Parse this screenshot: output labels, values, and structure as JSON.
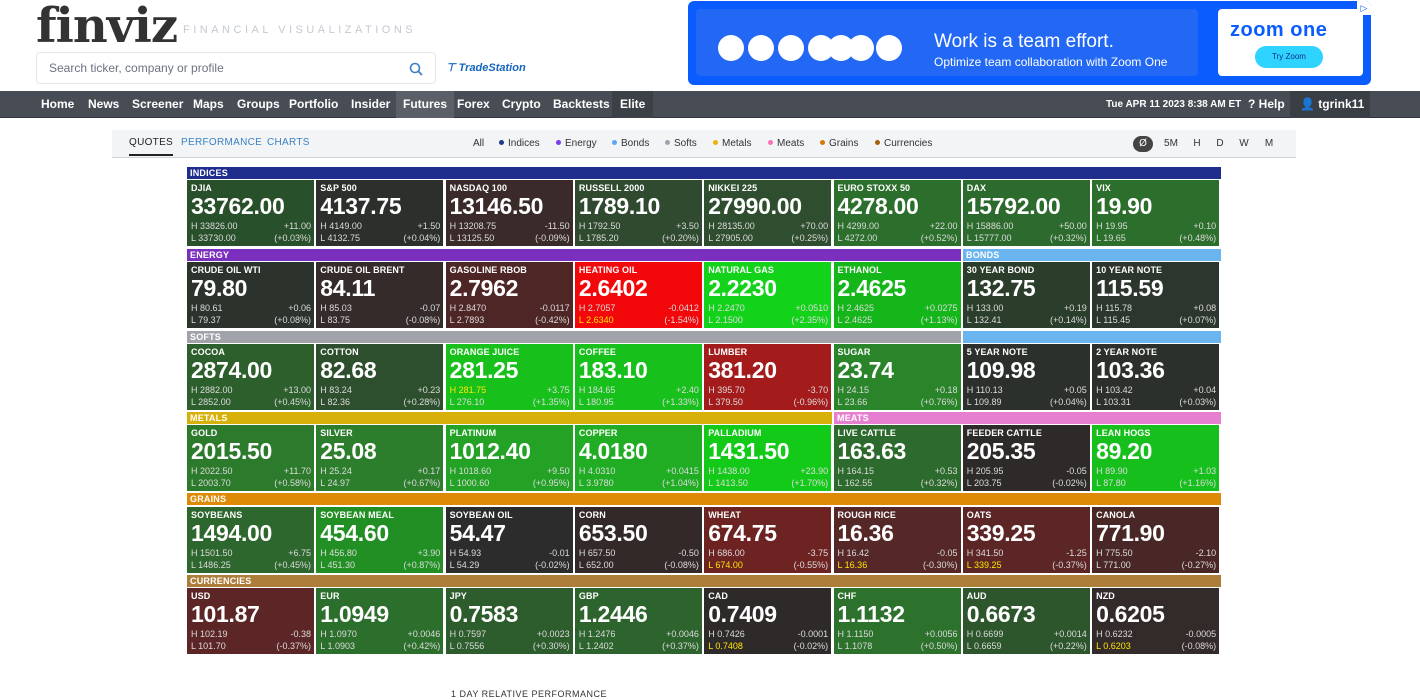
{
  "header": {
    "logo": "finviz",
    "tagline": "FINANCIAL VISUALIZATIONS",
    "search_placeholder": "Search ticker, company or profile",
    "tradestation": "TradeStation"
  },
  "ad": {
    "title": "Work is a team effort.",
    "subtitle": "Optimize team collaboration with Zoom One",
    "brand": "zoom one",
    "cta": "Try Zoom",
    "close": "▷"
  },
  "nav": {
    "items": [
      "Home",
      "News",
      "Screener",
      "Maps",
      "Groups",
      "Portfolio",
      "Insider",
      "Futures",
      "Forex",
      "Crypto",
      "Backtests",
      "Elite"
    ],
    "active": "Futures",
    "datetime": "Tue APR 11 2023 8:38 AM ET",
    "help": "Help",
    "user": "tgrink11"
  },
  "subnav": {
    "tabs": [
      "QUOTES",
      "PERFORMANCE",
      "CHARTS"
    ],
    "active_tab": "QUOTES",
    "filters": [
      {
        "label": "All",
        "color": ""
      },
      {
        "label": "Indices",
        "color": "#1e3a8a"
      },
      {
        "label": "Energy",
        "color": "#7c3aed"
      },
      {
        "label": "Bonds",
        "color": "#60a5fa"
      },
      {
        "label": "Softs",
        "color": "#9ca3af"
      },
      {
        "label": "Metals",
        "color": "#eab308"
      },
      {
        "label": "Meats",
        "color": "#f472b6"
      },
      {
        "label": "Grains",
        "color": "#d97706"
      },
      {
        "label": "Currencies",
        "color": "#a16207"
      }
    ],
    "timeframes": [
      "Ø",
      "5M",
      "H",
      "D",
      "W",
      "M"
    ],
    "active_timeframe": "Ø"
  },
  "categories": {
    "indices": {
      "label": "INDICES",
      "color": "#1f2d8c"
    },
    "energy": {
      "label": "ENERGY",
      "color": "#7b2fbe"
    },
    "bonds": {
      "label": "BONDS",
      "color": "#6ab5f0"
    },
    "softs": {
      "label": "SOFTS",
      "color": "#a0a4aa"
    },
    "metals": {
      "label": "METALS",
      "color": "#d7b10a"
    },
    "meats": {
      "label": "MEATS",
      "color": "#e77fd0"
    },
    "grains": {
      "label": "GRAINS",
      "color": "#dd8a07"
    },
    "currencies": {
      "label": "CURRENCIES",
      "color": "#ad7d3a"
    }
  },
  "tiles": [
    {
      "name": "DJIA",
      "price": "33762.00",
      "high": "H 33826.00",
      "low": "L 33730.00",
      "change": "+11.00",
      "pct": "(+0.03%)",
      "color": "#28502a"
    },
    {
      "name": "S&P 500",
      "price": "4137.75",
      "high": "H 4149.00",
      "low": "L 4132.75",
      "change": "+1.50",
      "pct": "(+0.04%)",
      "color": "#2c2f2c"
    },
    {
      "name": "NASDAQ 100",
      "price": "13146.50",
      "high": "H 13208.75",
      "low": "L 13125.50",
      "change": "-11.50",
      "pct": "(-0.09%)",
      "color": "#3a2a2a"
    },
    {
      "name": "RUSSELL 2000",
      "price": "1789.10",
      "high": "H 1792.50",
      "low": "L 1785.20",
      "change": "+3.50",
      "pct": "(+0.20%)",
      "color": "#2f4a2f"
    },
    {
      "name": "NIKKEI 225",
      "price": "27990.00",
      "high": "H 28135.00",
      "low": "L 27905.00",
      "change": "+70.00",
      "pct": "(+0.25%)",
      "color": "#2f4e2f"
    },
    {
      "name": "EURO STOXX 50",
      "price": "4278.00",
      "high": "H 4299.00",
      "low": "L 4272.00",
      "change": "+22.00",
      "pct": "(+0.52%)",
      "color": "#2c6f2c"
    },
    {
      "name": "DAX",
      "price": "15792.00",
      "high": "H 15886.00",
      "low": "L 15777.00",
      "change": "+50.00",
      "pct": "(+0.32%)",
      "color": "#2d6a2d"
    },
    {
      "name": "VIX",
      "price": "19.90",
      "high": "H 19.95",
      "low": "L 19.65",
      "change": "+0.10",
      "pct": "(+0.48%)",
      "color": "#2c6e2c"
    },
    {
      "name": "CRUDE OIL WTI",
      "price": "79.80",
      "high": "H 80.61",
      "low": "L 79.37",
      "change": "+0.06",
      "pct": "(+0.08%)",
      "color": "#2c322c"
    },
    {
      "name": "CRUDE OIL BRENT",
      "price": "84.11",
      "high": "H 85.03",
      "low": "L 83.75",
      "change": "-0.07",
      "pct": "(-0.08%)",
      "color": "#352b2b"
    },
    {
      "name": "GASOLINE RBOB",
      "price": "2.7962",
      "high": "H 2.8470",
      "low": "L 2.7893",
      "change": "-0.0117",
      "pct": "(-0.42%)",
      "color": "#4f2626"
    },
    {
      "name": "HEATING OIL",
      "price": "2.6402",
      "high": "H 2.7057",
      "low": "L 2.6340",
      "change": "-0.0412",
      "pct": "(-1.54%)",
      "color": "#f2070b",
      "lowHL": true
    },
    {
      "name": "NATURAL GAS",
      "price": "2.2230",
      "high": "H 2.2470",
      "low": "L 2.1500",
      "change": "+0.0510",
      "pct": "(+2.35%)",
      "color": "#13d21a"
    },
    {
      "name": "ETHANOL",
      "price": "2.4625",
      "high": "H 2.4625",
      "low": "L 2.4625",
      "change": "+0.0275",
      "pct": "(+1.13%)",
      "color": "#15b61a"
    },
    {
      "name": "30 YEAR BOND",
      "price": "132.75",
      "high": "H 133.00",
      "low": "L 132.41",
      "change": "+0.19",
      "pct": "(+0.14%)",
      "color": "#2b3d2b"
    },
    {
      "name": "10 YEAR NOTE",
      "price": "115.59",
      "high": "H 115.78",
      "low": "L 115.45",
      "change": "+0.08",
      "pct": "(+0.07%)",
      "color": "#2c362c"
    },
    {
      "name": "COCOA",
      "price": "2874.00",
      "high": "H 2882.00",
      "low": "L 2852.00",
      "change": "+13.00",
      "pct": "(+0.45%)",
      "color": "#2d5f2d"
    },
    {
      "name": "COTTON",
      "price": "82.68",
      "high": "H 83.24",
      "low": "L 82.36",
      "change": "+0.23",
      "pct": "(+0.28%)",
      "color": "#2d4f2d"
    },
    {
      "name": "ORANGE JUICE",
      "price": "281.25",
      "high": "H 281.75",
      "low": "L 276.10",
      "change": "+3.75",
      "pct": "(+1.35%)",
      "color": "#18c01c",
      "highHL": true
    },
    {
      "name": "COFFEE",
      "price": "183.10",
      "high": "H 184.65",
      "low": "L 180.95",
      "change": "+2.40",
      "pct": "(+1.33%)",
      "color": "#18c01c"
    },
    {
      "name": "LUMBER",
      "price": "381.20",
      "high": "H 395.70",
      "low": "L 379.50",
      "change": "-3.70",
      "pct": "(-0.96%)",
      "color": "#a41b1b"
    },
    {
      "name": "SUGAR",
      "price": "23.74",
      "high": "H 24.15",
      "low": "L 23.66",
      "change": "+0.18",
      "pct": "(+0.76%)",
      "color": "#2a842a"
    },
    {
      "name": "5 YEAR NOTE",
      "price": "109.98",
      "high": "H 110.13",
      "low": "L 109.89",
      "change": "+0.05",
      "pct": "(+0.04%)",
      "color": "#2c302c"
    },
    {
      "name": "2 YEAR NOTE",
      "price": "103.36",
      "high": "H 103.42",
      "low": "L 103.31",
      "change": "+0.04",
      "pct": "(+0.03%)",
      "color": "#2c302c"
    },
    {
      "name": "GOLD",
      "price": "2015.50",
      "high": "H 2022.50",
      "low": "L 2003.70",
      "change": "+11.70",
      "pct": "(+0.58%)",
      "color": "#2c7a2c"
    },
    {
      "name": "SILVER",
      "price": "25.08",
      "high": "H 25.24",
      "low": "L 24.97",
      "change": "+0.17",
      "pct": "(+0.67%)",
      "color": "#2c7e2c"
    },
    {
      "name": "PLATINUM",
      "price": "1012.40",
      "high": "H 1018.60",
      "low": "L 1000.60",
      "change": "+9.50",
      "pct": "(+0.95%)",
      "color": "#23a226"
    },
    {
      "name": "COPPER",
      "price": "4.0180",
      "high": "H 4.0310",
      "low": "L 3.9780",
      "change": "+0.0415",
      "pct": "(+1.04%)",
      "color": "#20ad23"
    },
    {
      "name": "PALLADIUM",
      "price": "1431.50",
      "high": "H 1438.00",
      "low": "L 1413.50",
      "change": "+23.90",
      "pct": "(+1.70%)",
      "color": "#14ca19"
    },
    {
      "name": "LIVE CATTLE",
      "price": "163.63",
      "high": "H 164.15",
      "low": "L 162.55",
      "change": "+0.53",
      "pct": "(+0.32%)",
      "color": "#2d6a2d"
    },
    {
      "name": "FEEDER CATTLE",
      "price": "205.35",
      "high": "H 205.95",
      "low": "L 203.75",
      "change": "-0.05",
      "pct": "(-0.02%)",
      "color": "#2f2a2a"
    },
    {
      "name": "LEAN HOGS",
      "price": "89.20",
      "high": "H 89.90",
      "low": "L 87.80",
      "change": "+1.03",
      "pct": "(+1.16%)",
      "color": "#16bf1b"
    },
    {
      "name": "SOYBEANS",
      "price": "1494.00",
      "high": "H 1501.50",
      "low": "L 1486.25",
      "change": "+6.75",
      "pct": "(+0.45%)",
      "color": "#2d672d"
    },
    {
      "name": "SOYBEAN MEAL",
      "price": "454.60",
      "high": "H 456.80",
      "low": "L 451.30",
      "change": "+3.90",
      "pct": "(+0.87%)",
      "color": "#228f25"
    },
    {
      "name": "SOYBEAN OIL",
      "price": "54.47",
      "high": "H 54.93",
      "low": "L 54.29",
      "change": "-0.01",
      "pct": "(-0.02%)",
      "color": "#2c2c2c"
    },
    {
      "name": "CORN",
      "price": "653.50",
      "high": "H 657.50",
      "low": "L 652.00",
      "change": "-0.50",
      "pct": "(-0.08%)",
      "color": "#332929"
    },
    {
      "name": "WHEAT",
      "price": "674.75",
      "high": "H 686.00",
      "low": "L 674.00",
      "change": "-3.75",
      "pct": "(-0.55%)",
      "color": "#6e2323",
      "lowHL": true
    },
    {
      "name": "ROUGH RICE",
      "price": "16.36",
      "high": "H 16.42",
      "low": "L 16.36",
      "change": "-0.05",
      "pct": "(-0.30%)",
      "color": "#552727",
      "lowHL": true
    },
    {
      "name": "OATS",
      "price": "339.25",
      "high": "H 341.50",
      "low": "L 339.25",
      "change": "-1.25",
      "pct": "(-0.37%)",
      "color": "#5c2626",
      "lowHL": true
    },
    {
      "name": "CANOLA",
      "price": "771.90",
      "high": "H 775.50",
      "low": "L 771.00",
      "change": "-2.10",
      "pct": "(-0.27%)",
      "color": "#4a2727"
    },
    {
      "name": "USD",
      "price": "101.87",
      "high": "H 102.19",
      "low": "L 101.70",
      "change": "-0.38",
      "pct": "(-0.37%)",
      "color": "#5c2626"
    },
    {
      "name": "EUR",
      "price": "1.0949",
      "high": "H 1.0970",
      "low": "L 1.0903",
      "change": "+0.0046",
      "pct": "(+0.42%)",
      "color": "#2c6f2c"
    },
    {
      "name": "JPY",
      "price": "0.7583",
      "high": "H 0.7597",
      "low": "L 0.7556",
      "change": "+0.0023",
      "pct": "(+0.30%)",
      "color": "#2d5c2d"
    },
    {
      "name": "GBP",
      "price": "1.2446",
      "high": "H 1.2476",
      "low": "L 1.2402",
      "change": "+0.0046",
      "pct": "(+0.37%)",
      "color": "#2d642d"
    },
    {
      "name": "CAD",
      "price": "0.7409",
      "high": "H 0.7426",
      "low": "L 0.7408",
      "change": "-0.0001",
      "pct": "(-0.02%)",
      "color": "#2f2a2a",
      "lowHL": true
    },
    {
      "name": "CHF",
      "price": "1.1132",
      "high": "H 1.1150",
      "low": "L 1.1078",
      "change": "+0.0056",
      "pct": "(+0.50%)",
      "color": "#2c712c"
    },
    {
      "name": "AUD",
      "price": "0.6673",
      "high": "H 0.6699",
      "low": "L 0.6659",
      "change": "+0.0014",
      "pct": "(+0.22%)",
      "color": "#2d562d"
    },
    {
      "name": "NZD",
      "price": "0.6205",
      "high": "H 0.6232",
      "low": "L 0.6203",
      "change": "-0.0005",
      "pct": "(-0.08%)",
      "color": "#332a2a",
      "lowHL": true
    }
  ],
  "footer": {
    "label": "1 DAY RELATIVE PERFORMANCE"
  }
}
